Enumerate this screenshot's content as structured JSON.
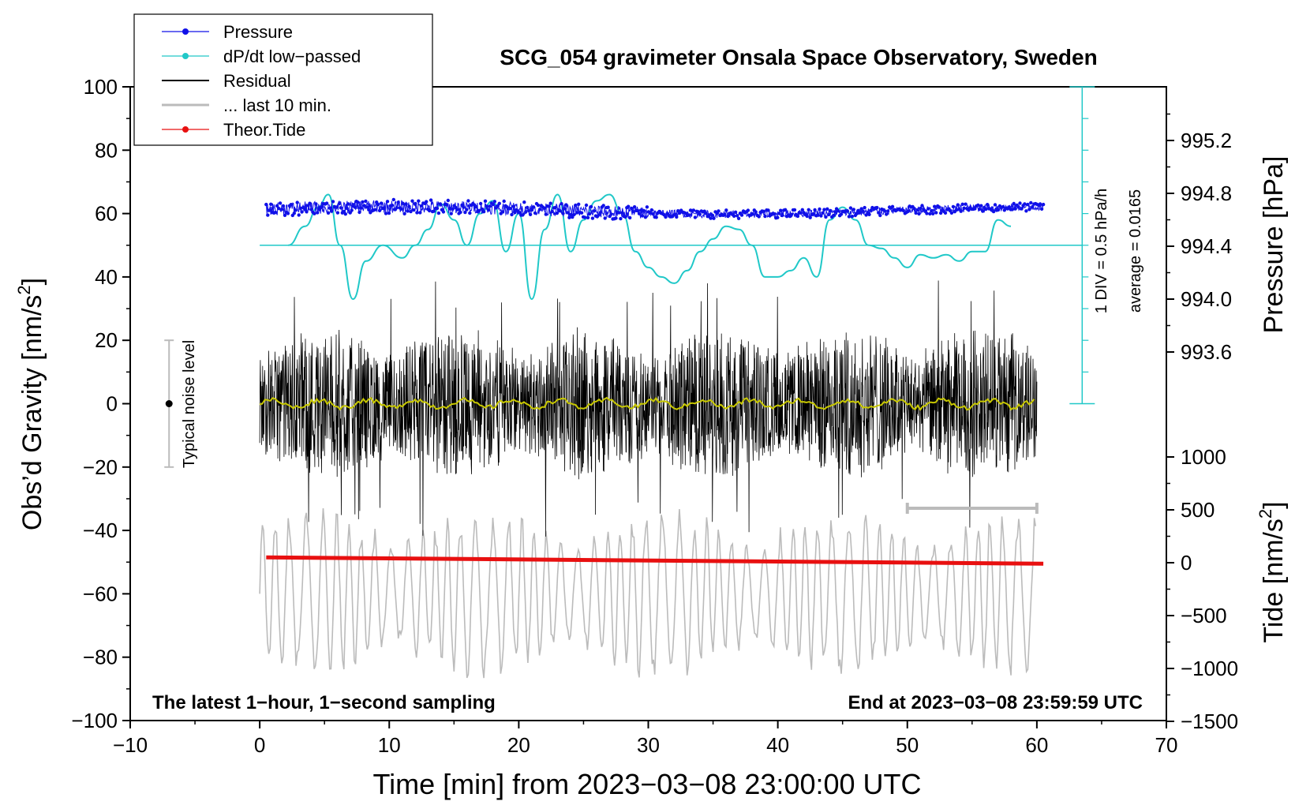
{
  "chart_data": {
    "type": "line",
    "title": "SCG_054 gravimeter Onsala Space Observatory, Sweden",
    "xlabel": "Time [min] from 2023−03−08 23:00:00 UTC",
    "ylabel_main": "Obs’d Gravity [nm/s",
    "ylabel_sup": "2",
    "ylabel_close": "]",
    "ylabel_pressure": "Pressure [hPa]",
    "ylabel_tide": "Tide [nm/s",
    "ylabel_tide_sup": "2",
    "ylabel_tide_close": "]",
    "xlim": [
      -10,
      70
    ],
    "ylim": [
      -100,
      100
    ],
    "x_ticks": [
      "−10",
      "0",
      "10",
      "20",
      "30",
      "40",
      "50",
      "60",
      "70"
    ],
    "y_ticks": [
      "100",
      "80",
      "60",
      "40",
      "20",
      "0",
      "−20",
      "−40",
      "−60",
      "−80",
      "−100"
    ],
    "pressure_ticks": [
      "995.2",
      "994.8",
      "994.4",
      "994.0",
      "993.6"
    ],
    "tide_ticks": [
      "1000",
      "500",
      "0",
      "−500",
      "−1000",
      "−1500"
    ],
    "legend": [
      {
        "label": "Pressure",
        "color": "#1010e8"
      },
      {
        "label": "dP/dt low−passed",
        "color": "#20c8c8"
      },
      {
        "label": "Residual",
        "color": "#000000"
      },
      {
        "label": "... last 10 min.",
        "color": "#bbbbbb"
      },
      {
        "label": "Theor.Tide",
        "color": "#e81010"
      }
    ],
    "annotations": {
      "noise": "Typical noise level",
      "div": "1 DIV = 0.5 hPa/h",
      "average": "average = 0.0165",
      "bottom_left": "The latest 1−hour, 1−second sampling",
      "bottom_right": "End at 2023−03−08 23:59:59 UTC"
    },
    "series": [
      {
        "name": "Pressure",
        "color": "#1010e8",
        "y_approx_gravity_units": 61
      },
      {
        "name": "dP/dt low-passed",
        "color": "#20c8c8",
        "x": [
          2.2,
          3.5,
          4.5,
          5.3,
          6.2,
          7.2,
          8.2,
          9.5,
          11,
          12,
          13,
          14,
          15,
          16,
          17,
          18,
          19,
          20,
          21,
          22,
          23,
          24,
          25,
          26,
          27,
          28,
          29,
          30,
          31,
          32,
          33,
          34,
          35,
          36,
          37,
          38,
          39,
          40,
          41,
          42,
          43,
          44,
          45,
          46,
          47,
          48,
          49,
          50,
          51,
          52,
          53,
          54,
          55,
          56,
          57,
          58
        ],
        "values": [
          50,
          56,
          62,
          66,
          50,
          33,
          45,
          50,
          46,
          50,
          55,
          63,
          58,
          50,
          60,
          64,
          48,
          60,
          33,
          55,
          66,
          48,
          58,
          64,
          66,
          60,
          48,
          43,
          40,
          38,
          42,
          48,
          52,
          56,
          55,
          50,
          40,
          40,
          42,
          46,
          40,
          58,
          62,
          58,
          50,
          49,
          46,
          43,
          47,
          46,
          47,
          45,
          48,
          48,
          58,
          56
        ]
      },
      {
        "name": "Residual",
        "color": "#000000",
        "noise_amplitude": 25
      },
      {
        "name": "... last 10 min.",
        "color": "#bbbbbb",
        "center": -60,
        "amplitude": 25
      },
      {
        "name": "Theor.Tide",
        "color": "#e81010",
        "x": [
          0.5,
          60.5
        ],
        "values_gravity_units": [
          -48.5,
          -50.5
        ]
      },
      {
        "name": "Residual smoothed",
        "color": "#c8c800",
        "center": 0,
        "amplitude": 2
      }
    ],
    "dpdt_zero_line": 50,
    "noise_bar": {
      "x": -7,
      "low": -20,
      "high": 20
    },
    "range_bar": {
      "x_start": 50,
      "x_end": 60,
      "y": -33
    }
  }
}
